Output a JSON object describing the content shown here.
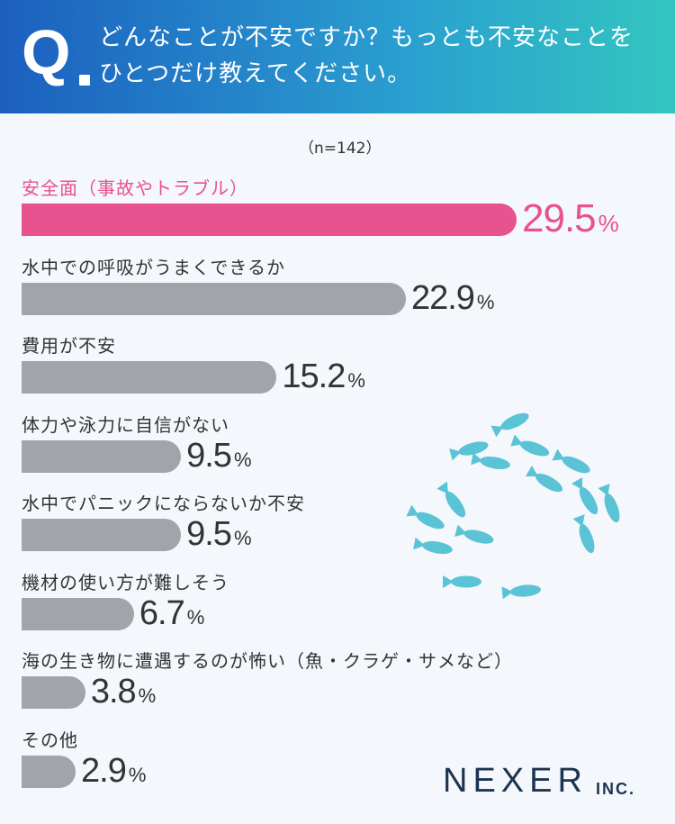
{
  "header": {
    "q_mark": "Q",
    "question": "どんなことが不安ですか？もっとも不安なことを\nひとつだけ教えてください。"
  },
  "sample_size": "（n=142）",
  "percent_unit": "%",
  "brand": {
    "name": "NEXER",
    "suffix": "INC."
  },
  "colors": {
    "highlight": "#e8528e",
    "bar": "#a2a4a9",
    "fish": "#5bc3d6",
    "header_start": "#1c5fbf",
    "header_end": "#33c6c0"
  },
  "decoration": {
    "fish_icon": "fish-icon"
  },
  "chart_data": {
    "type": "bar",
    "orientation": "horizontal",
    "categories": [
      "安全面（事故やトラブル）",
      "水中での呼吸がうまくできるか",
      "費用が不安",
      "体力や泳力に自信がない",
      "水中でパニックにならないか不安",
      "機材の使い方が難しそう",
      "海の生き物に遭遇するのが怖い（魚・クラゲ・サメなど）",
      "その他"
    ],
    "values": [
      29.5,
      22.9,
      15.2,
      9.5,
      9.5,
      6.7,
      3.8,
      2.9
    ],
    "labels": [
      "29.5",
      "22.9",
      "15.2",
      "9.5",
      "9.5",
      "6.7",
      "3.8",
      "2.9"
    ],
    "unit": "%",
    "highlight_index": 0
  }
}
